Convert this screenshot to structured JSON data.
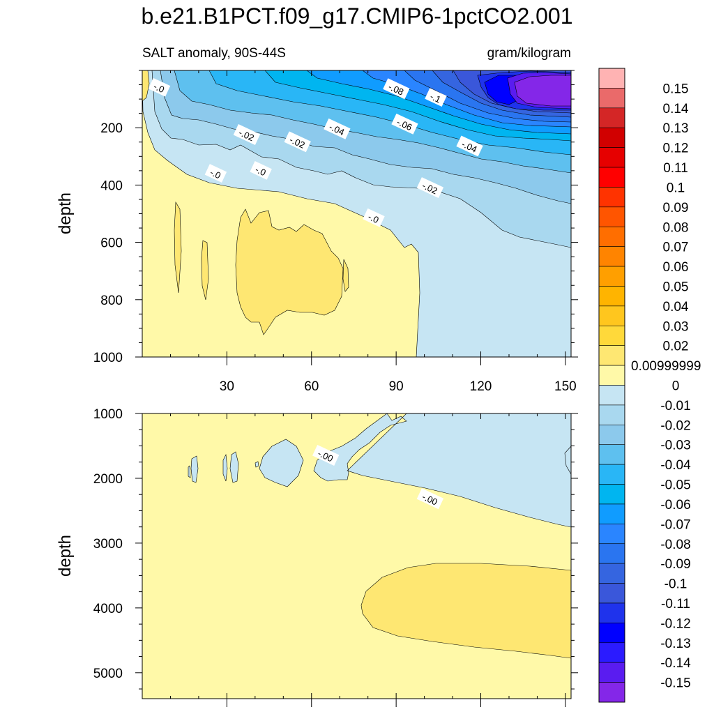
{
  "title": "b.e21.B1PCT.f09_g17.CMIP6-1pctCO2.001",
  "chart_data": [
    {
      "type": "contour",
      "panel": "upper",
      "subtitle_left": "SALT anomaly, 90S-44S",
      "subtitle_right": "gram/kilogram",
      "xlabel": "",
      "ylabel": "depth",
      "xlim": [
        0,
        152
      ],
      "ylim": [
        1000,
        0
      ],
      "xticks": [
        30,
        60,
        90,
        120,
        150
      ],
      "yticks": [
        200,
        400,
        600,
        800,
        1000
      ],
      "contour_labels": [
        {
          "text": "-.0",
          "x": 6,
          "y": 60
        },
        {
          "text": "-.08",
          "x": 90,
          "y": 65
        },
        {
          "text": "-.1",
          "x": 104,
          "y": 95
        },
        {
          "text": "-.02",
          "x": 37,
          "y": 225
        },
        {
          "text": "-.04",
          "x": 69,
          "y": 205
        },
        {
          "text": "-.06",
          "x": 93,
          "y": 188
        },
        {
          "text": "-.02",
          "x": 55,
          "y": 250
        },
        {
          "text": "-.04",
          "x": 116,
          "y": 265
        },
        {
          "text": "-.0",
          "x": 26,
          "y": 360
        },
        {
          "text": "-.0",
          "x": 42,
          "y": 350
        },
        {
          "text": "-.02",
          "x": 102,
          "y": 410
        },
        {
          "text": "-.0",
          "x": 82,
          "y": 515
        }
      ]
    },
    {
      "type": "contour",
      "panel": "lower",
      "xlabel": "",
      "ylabel": "depth",
      "xlim": [
        0,
        152
      ],
      "ylim": [
        5400,
        1000
      ],
      "xticks": [
        30,
        60,
        90,
        120,
        150
      ],
      "yticks": [
        1000,
        2000,
        3000,
        4000,
        5000
      ],
      "contour_labels": [
        {
          "text": "-.00",
          "x": 65,
          "y": 1650
        },
        {
          "text": "-.00",
          "x": 102,
          "y": 2320
        }
      ]
    }
  ],
  "colorbar": {
    "levels": [
      "0.15",
      "0.14",
      "0.13",
      "0.12",
      "0.11",
      "0.1",
      "0.09",
      "0.08",
      "0.07",
      "0.06",
      "0.05",
      "0.04",
      "0.03",
      "0.02",
      "0.00999999",
      "0",
      "-0.01",
      "-0.02",
      "-0.03",
      "-0.04",
      "-0.05",
      "-0.06",
      "-0.07",
      "-0.08",
      "-0.09",
      "-0.1",
      "-0.11",
      "-0.12",
      "-0.13",
      "-0.14",
      "-0.15"
    ],
    "colors": [
      "#ffb3b3",
      "#ea6a6a",
      "#d42626",
      "#d10000",
      "#e60000",
      "#ff0000",
      "#ff3300",
      "#ff5500",
      "#ff6e00",
      "#ff8400",
      "#ff9f00",
      "#ffb400",
      "#ffc61e",
      "#ffd93a",
      "#fee772",
      "#fff9a8",
      "#c6e5f3",
      "#a9d8ef",
      "#8cc9ec",
      "#5ec0ef",
      "#29b6f6",
      "#00b5f0",
      "#109cff",
      "#2a85ff",
      "#2a75f0",
      "#3565e0",
      "#3a57da",
      "#1f33ec",
      "#0000ff",
      "#2b1bff",
      "#5a1cf0",
      "#8427e8"
    ]
  }
}
